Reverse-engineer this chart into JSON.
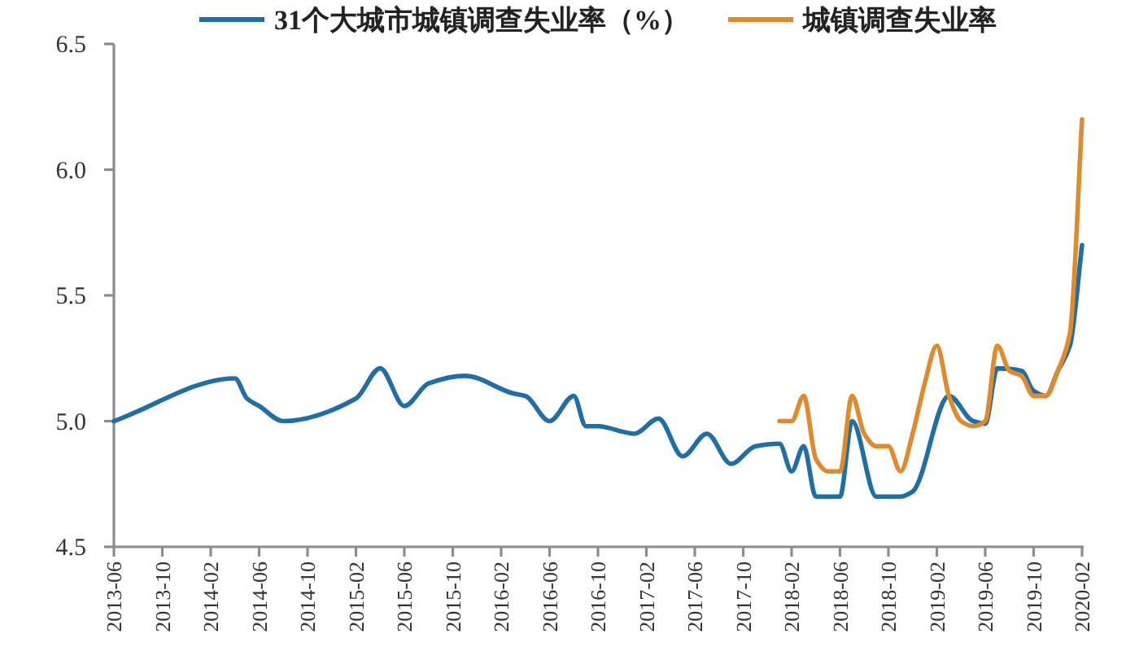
{
  "chart_data": {
    "type": "line",
    "legend": "top",
    "xlim": [
      "2013-06",
      "2020-02"
    ],
    "ylim": [
      4.5,
      6.5
    ],
    "yticks": [
      {
        "value": 4.5,
        "label": "4.5"
      },
      {
        "value": 5.0,
        "label": "5.0"
      },
      {
        "value": 5.5,
        "label": "5.5"
      },
      {
        "value": 6.0,
        "label": "6.0"
      },
      {
        "value": 6.5,
        "label": "6.5"
      }
    ],
    "xticks": [
      "2013-06",
      "2013-10",
      "2014-02",
      "2014-06",
      "2014-10",
      "2015-02",
      "2015-06",
      "2015-10",
      "2016-02",
      "2016-06",
      "2016-10",
      "2017-02",
      "2017-06",
      "2017-10",
      "2018-02",
      "2018-06",
      "2018-10",
      "2019-02",
      "2019-06",
      "2019-10",
      "2020-02"
    ],
    "series": [
      {
        "name": "31个大城市城镇调查失业率（%）",
        "color": "#1f6ea6",
        "x": [
          "2013-06",
          "2014-04",
          "2014-05",
          "2014-06",
          "2014-08",
          "2015-02",
          "2015-04",
          "2015-06",
          "2015-08",
          "2015-11",
          "2016-03",
          "2016-04",
          "2016-06",
          "2016-08",
          "2016-09",
          "2016-10",
          "2017-01",
          "2017-03",
          "2017-05",
          "2017-07",
          "2017-09",
          "2017-11",
          "2018-01",
          "2018-02",
          "2018-03",
          "2018-04",
          "2018-06",
          "2018-07",
          "2018-09",
          "2018-11",
          "2018-12",
          "2019-03",
          "2019-05",
          "2019-06",
          "2019-07",
          "2019-09",
          "2019-10",
          "2019-11",
          "2019-12",
          "2020-01",
          "2020-02"
        ],
        "values": [
          5.0,
          5.17,
          5.09,
          5.06,
          5.0,
          5.09,
          5.21,
          5.06,
          5.15,
          5.18,
          5.11,
          5.1,
          5.0,
          5.1,
          4.98,
          4.98,
          4.95,
          5.01,
          4.86,
          4.95,
          4.83,
          4.9,
          4.91,
          4.8,
          4.9,
          4.7,
          4.7,
          5.0,
          4.7,
          4.7,
          4.72,
          5.1,
          5.0,
          4.99,
          5.21,
          5.2,
          5.12,
          5.1,
          5.2,
          5.3,
          5.7
        ]
      },
      {
        "name": "城镇调查失业率",
        "color": "#e08a2e",
        "x": [
          "2018-01",
          "2018-02",
          "2018-03",
          "2018-04",
          "2018-05",
          "2018-06",
          "2018-07",
          "2018-08",
          "2018-09",
          "2018-10",
          "2018-11",
          "2018-12",
          "2019-01",
          "2019-02",
          "2019-03",
          "2019-04",
          "2019-05",
          "2019-06",
          "2019-07",
          "2019-08",
          "2019-09",
          "2019-10",
          "2019-11",
          "2019-12",
          "2020-01",
          "2020-02"
        ],
        "values": [
          5.0,
          5.0,
          5.1,
          4.85,
          4.8,
          4.8,
          5.1,
          4.95,
          4.9,
          4.9,
          4.8,
          4.95,
          5.15,
          5.3,
          5.1,
          5.0,
          4.98,
          5.0,
          5.3,
          5.2,
          5.18,
          5.1,
          5.1,
          5.2,
          5.35,
          6.2
        ]
      }
    ]
  }
}
